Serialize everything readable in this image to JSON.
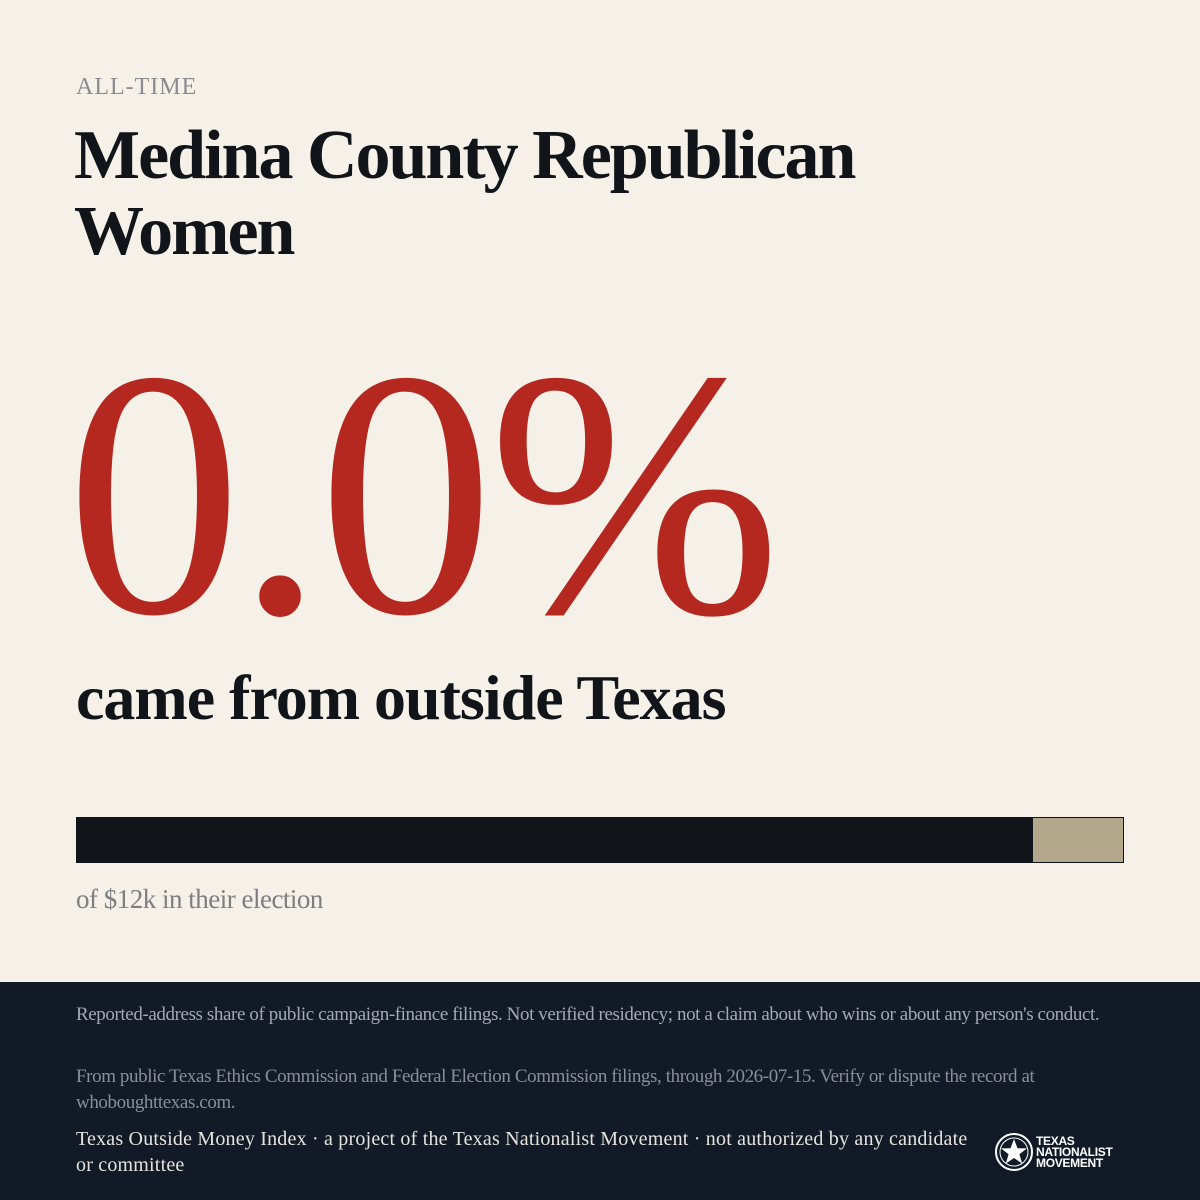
{
  "header": {
    "kicker": "ALL-TIME",
    "title": "Medina County Republican Women"
  },
  "stat": {
    "value": "0.0%",
    "label": "came from outside Texas",
    "outside_share_percent": 0.0,
    "bar_unlabeled_segment_fraction": 0.086,
    "caption": "of $12k in their election"
  },
  "colors": {
    "background": "#f5f1e9",
    "accent_red": "#b52820",
    "ink": "#111418",
    "bar_tan": "#b3a78c",
    "footer_navy": "#111a26"
  },
  "footer": {
    "disclaimer": "Reported-address share of public campaign-finance filings. Not verified residency; not a claim about who wins or about any person's conduct.",
    "source": "From public Texas Ethics Commission and Federal Election Commission filings, through 2026-07-15. Verify or dispute the record at whoboughttexas.com.",
    "attribution": "Texas Outside Money Index · a project of the Texas Nationalist Movement · not authorized by any candidate or committee"
  },
  "brand": {
    "icon": "tnm-star-seal-icon",
    "line1": "TEXAS",
    "line2": "NATIONALIST",
    "line3": "MOVEMENT"
  }
}
